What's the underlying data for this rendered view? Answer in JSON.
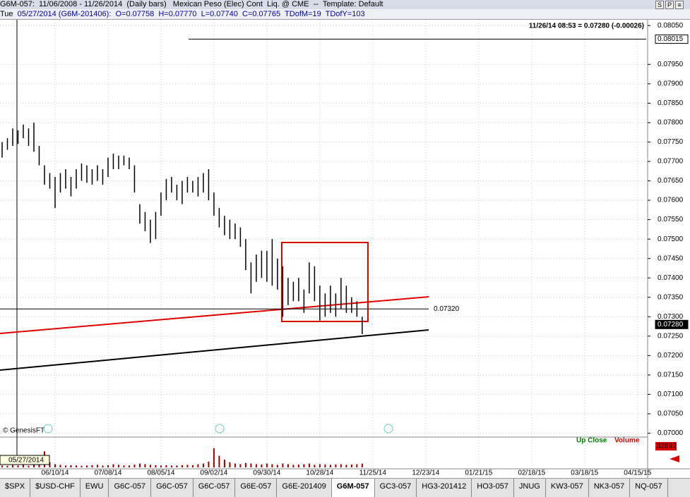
{
  "header": {
    "line1": "G6M-057:  11/06/2008 - 11/26/2014  (Daily bars)   Mexican Peso (Elec) Cont  Liq. @ CME  --  Template: Default",
    "weekday": "Tue",
    "line2": "05/27/2014 (G6M-201406):  O=0.07758  H=0.07770  L=0.07740  C=0.07765  TDofM=19  TDofY=103",
    "buttons": [
      "S",
      "P"
    ]
  },
  "chart_data": {
    "type": "ohlc",
    "info": "11/26/14 08:53 = 0.07280 (-0.00026)",
    "credit": "© GenesisFT",
    "cursor_date": "05/27/2014",
    "x": [
      0,
      2,
      4,
      6,
      8,
      10,
      12,
      14,
      16,
      18,
      20,
      22,
      24,
      26,
      28,
      30,
      32,
      34,
      36,
      38,
      40,
      42,
      44,
      46,
      48,
      50,
      52,
      54,
      56,
      58,
      60,
      62,
      64,
      66,
      68,
      70,
      72,
      74,
      76,
      78,
      80,
      82,
      84,
      86,
      88,
      90,
      92,
      94,
      96,
      98,
      100,
      102,
      104,
      106,
      108,
      110,
      112,
      114,
      116,
      118,
      120,
      122,
      124,
      126,
      128,
      130,
      132,
      134,
      136
    ],
    "high": [
      0.0775,
      0.0776,
      0.07785,
      0.0778,
      0.07795,
      0.07785,
      0.078,
      0.0774,
      0.0769,
      0.0767,
      0.0766,
      0.0767,
      0.0768,
      0.0766,
      0.0768,
      0.07695,
      0.0769,
      0.0768,
      0.0769,
      0.0768,
      0.0771,
      0.0772,
      0.07715,
      0.07715,
      0.0771,
      0.0769,
      0.0759,
      0.0757,
      0.0755,
      0.0757,
      0.0762,
      0.07655,
      0.0766,
      0.0764,
      0.0765,
      0.0766,
      0.0765,
      0.0766,
      0.0767,
      0.0768,
      0.0762,
      0.0758,
      0.0756,
      0.0755,
      0.0754,
      0.0753,
      0.075,
      0.0744,
      0.0746,
      0.0747,
      0.0747,
      0.075,
      0.0745,
      0.0743,
      0.074,
      0.0739,
      0.074,
      0.0737,
      0.0744,
      0.0743,
      0.0738,
      0.0736,
      0.0738,
      0.0736,
      0.074,
      0.0738,
      0.0735,
      0.0734,
      0.073
    ],
    "low": [
      0.0771,
      0.0773,
      0.0774,
      0.07745,
      0.0776,
      0.0774,
      0.07725,
      0.0769,
      0.0764,
      0.0763,
      0.0758,
      0.0762,
      0.0763,
      0.0761,
      0.0763,
      0.0765,
      0.07645,
      0.0764,
      0.0765,
      0.0764,
      0.0766,
      0.0768,
      0.0768,
      0.0769,
      0.0768,
      0.0762,
      0.0754,
      0.0752,
      0.0749,
      0.075,
      0.0756,
      0.076,
      0.0762,
      0.076,
      0.0759,
      0.0762,
      0.0762,
      0.0761,
      0.0762,
      0.076,
      0.0756,
      0.0753,
      0.0751,
      0.075,
      0.075,
      0.0748,
      0.0742,
      0.0736,
      0.0739,
      0.074,
      0.0739,
      0.0738,
      0.0737,
      0.073,
      0.0733,
      0.0734,
      0.0734,
      0.0731,
      0.0736,
      0.0734,
      0.0729,
      0.073,
      0.0731,
      0.073,
      0.0732,
      0.0731,
      0.0731,
      0.073,
      0.07255
    ],
    "color": "#000000",
    "xlim": [
      -0.8,
      243.8
    ],
    "ylim": [
      0.0699,
      0.08065
    ],
    "xticks": [
      {
        "value": 20,
        "label": "06/10/14"
      },
      {
        "value": 40,
        "label": "07/08/14"
      },
      {
        "value": 60,
        "label": "08/05/14"
      },
      {
        "value": 80,
        "label": "09/02/14"
      },
      {
        "value": 100,
        "label": "09/30/14"
      },
      {
        "value": 120,
        "label": "10/28/14"
      },
      {
        "value": 140,
        "label": "11/25/14"
      },
      {
        "value": 160,
        "label": "12/23/14"
      },
      {
        "value": 180,
        "label": "01/21/15"
      },
      {
        "value": 200,
        "label": "02/18/15"
      },
      {
        "value": 220,
        "label": "03/18/15"
      },
      {
        "value": 240,
        "label": "04/15/15"
      }
    ],
    "yticks": [
      {
        "value": 0.07,
        "label": "0.07000"
      },
      {
        "value": 0.0705,
        "label": "0.07050"
      },
      {
        "value": 0.071,
        "label": "0.07100"
      },
      {
        "value": 0.0715,
        "label": "0.07150"
      },
      {
        "value": 0.072,
        "label": "0.07200"
      },
      {
        "value": 0.0725,
        "label": "0.07250"
      },
      {
        "value": 0.073,
        "label": "0.07300"
      },
      {
        "value": 0.0735,
        "label": "0.07350"
      },
      {
        "value": 0.074,
        "label": "0.07400"
      },
      {
        "value": 0.0745,
        "label": "0.07450"
      },
      {
        "value": 0.075,
        "label": "0.07500"
      },
      {
        "value": 0.0755,
        "label": "0.07550"
      },
      {
        "value": 0.076,
        "label": "0.07600"
      },
      {
        "value": 0.0765,
        "label": "0.07650"
      },
      {
        "value": 0.077,
        "label": "0.07700"
      },
      {
        "value": 0.0775,
        "label": "0.07750"
      },
      {
        "value": 0.078,
        "label": "0.07800"
      },
      {
        "value": 0.0785,
        "label": "0.07850"
      },
      {
        "value": 0.079,
        "label": "0.07900"
      },
      {
        "value": 0.0795,
        "label": "0.07950"
      },
      {
        "value": 0.0805,
        "label": "0.08050"
      }
    ],
    "grid": true,
    "level": {
      "value": 0.0732,
      "label": "0.07320"
    },
    "markers": [
      {
        "value": 0.08015,
        "label": "0.08015"
      },
      {
        "value": 0.0728,
        "label": "0.07280"
      }
    ],
    "volume": {
      "values": [
        3000,
        2500,
        3500,
        3000,
        4000,
        2500,
        5000,
        15000,
        25000,
        8000,
        5000,
        4000,
        3000,
        3500,
        3000,
        2500,
        3000,
        3500,
        4000,
        3000,
        3500,
        5000,
        4000,
        3000,
        3000,
        4500,
        6000,
        5000,
        4000,
        3500,
        3000,
        3500,
        3000,
        3000,
        3500,
        4000,
        3500,
        5000,
        6000,
        9000,
        30000,
        18000,
        12000,
        8000,
        6000,
        5000,
        7000,
        6000,
        5000,
        4500,
        6000,
        5000,
        4000,
        6000,
        5000,
        4000,
        4500,
        5000,
        6000,
        4000,
        5000,
        4500,
        4000,
        4500,
        5000,
        4000,
        4500,
        5000,
        6000
      ],
      "ylim": [
        0,
        45000
      ],
      "color": "#a00000",
      "legend": [
        "Up Close",
        "Volume"
      ],
      "legend_colors": [
        "#008000",
        "#e00000"
      ],
      "last": 32892
    }
  },
  "tabs": [
    "$SPX",
    "$USD-CHF",
    "EWU",
    "G6C-057",
    "G6C-057",
    "G6C-057",
    "G6E-057",
    "G6E-201409",
    "G6M-057",
    "GC3-057",
    "HG3-201412",
    "HO3-057",
    "JNUG",
    "KW3-057",
    "NK3-057",
    "NQ-057"
  ],
  "active_tab": 8
}
